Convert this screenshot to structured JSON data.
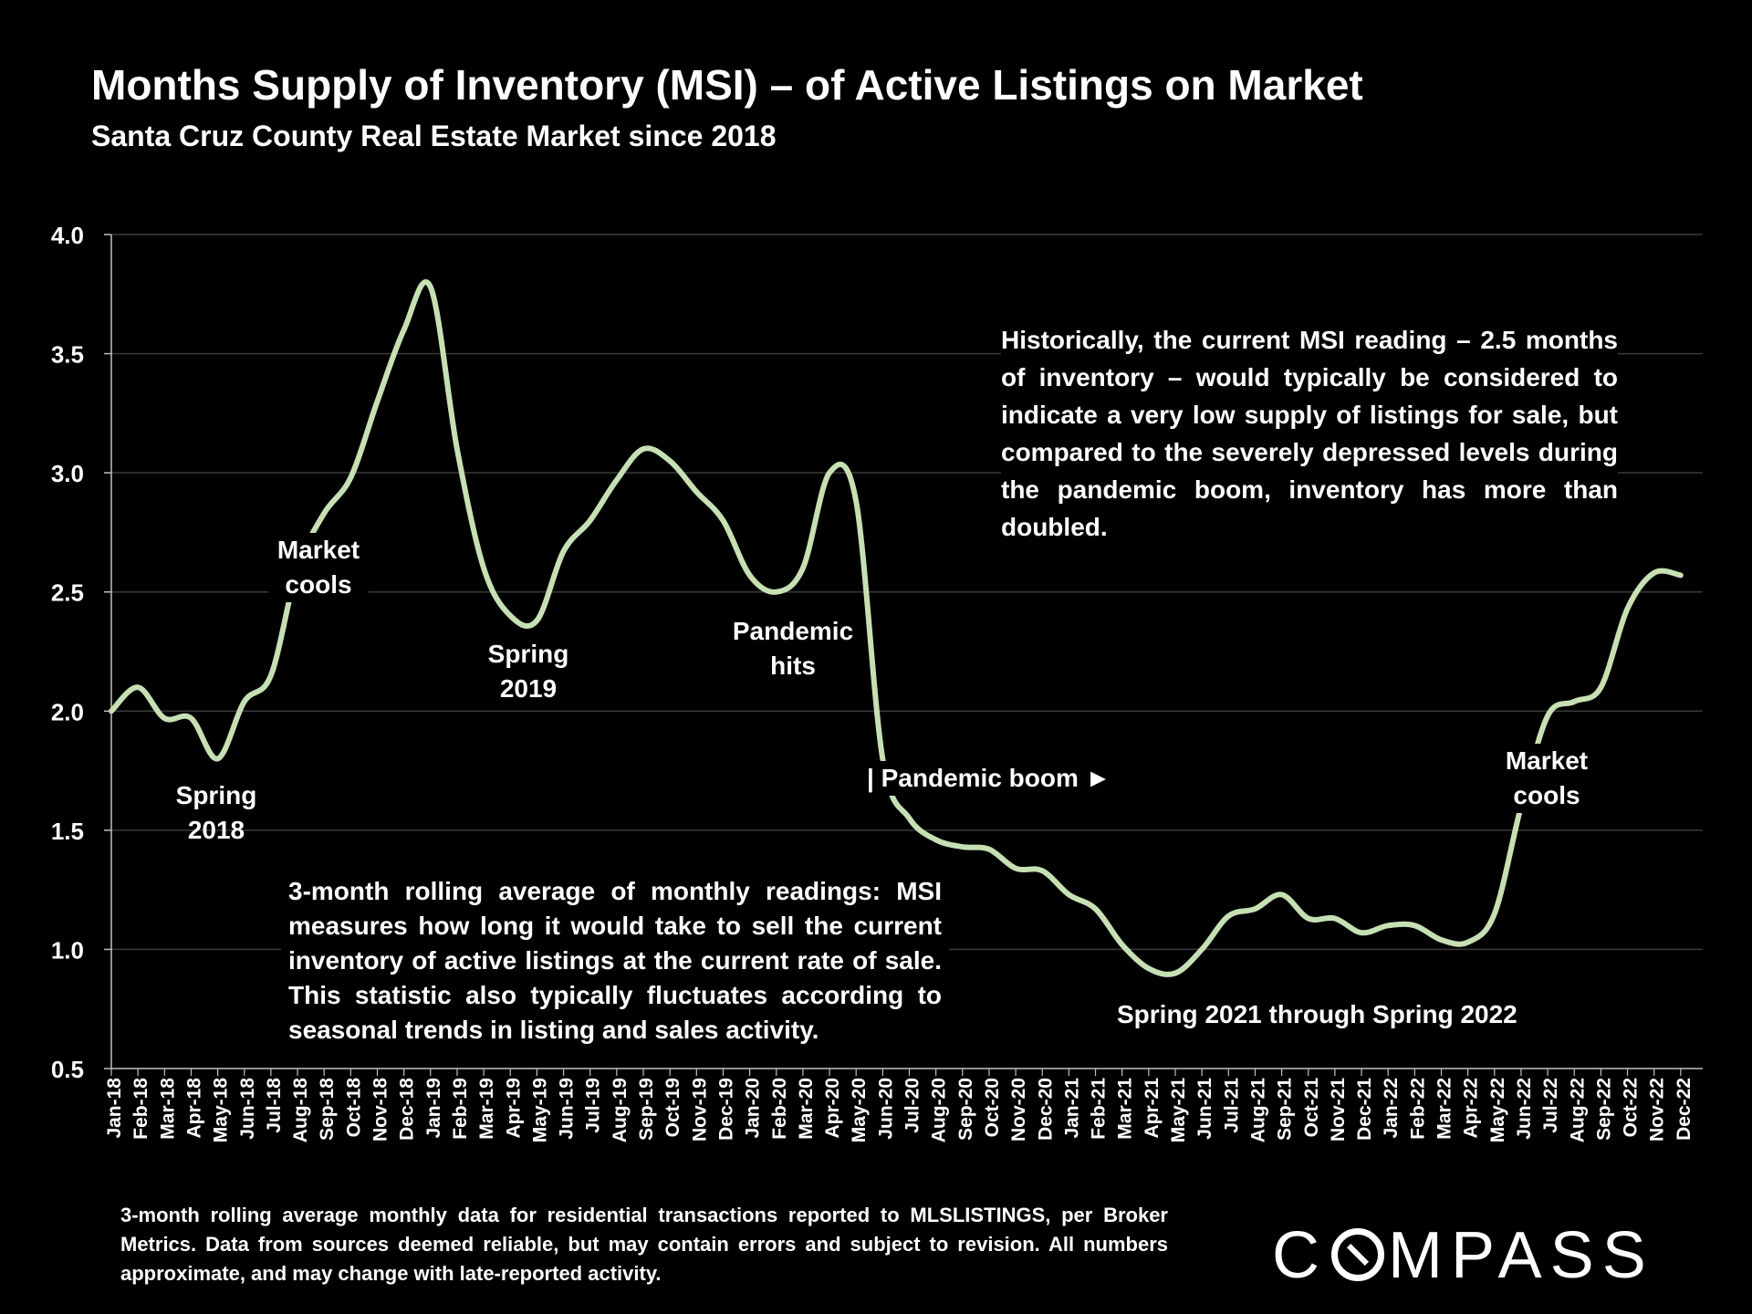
{
  "title": "Months Supply of Inventory (MSI) – of Active Listings on Market",
  "subtitle": "Santa Cruz County Real Estate Market since 2018",
  "chart_data": {
    "type": "line",
    "title": "Months Supply of Inventory (MSI) – of Active Listings on Market",
    "xlabel": "",
    "ylabel": "",
    "ylim": [
      0.5,
      4.0
    ],
    "yticks": [
      "0.5",
      "1.0",
      "1.5",
      "2.0",
      "2.5",
      "3.0",
      "3.5",
      "4.0"
    ],
    "grid": true,
    "categories": [
      "Jan-18",
      "Feb-18",
      "Mar-18",
      "Apr-18",
      "May-18",
      "Jun-18",
      "Jul-18",
      "Aug-18",
      "Sep-18",
      "Oct-18",
      "Nov-18",
      "Dec-18",
      "Jan-19",
      "Feb-19",
      "Mar-19",
      "Apr-19",
      "May-19",
      "Jun-19",
      "Jul-19",
      "Aug-19",
      "Sep-19",
      "Oct-19",
      "Nov-19",
      "Dec-19",
      "Jan-20",
      "Feb-20",
      "Mar-20",
      "Apr-20",
      "May-20",
      "Jun-20",
      "Jul-20",
      "Aug-20",
      "Sep-20",
      "Oct-20",
      "Nov-20",
      "Dec-20",
      "Jan-21",
      "Feb-21",
      "Mar-21",
      "Apr-21",
      "May-21",
      "Jun-21",
      "Jul-21",
      "Aug-21",
      "Sep-21",
      "Oct-21",
      "Nov-21",
      "Dec-21",
      "Jan-22",
      "Feb-22",
      "Mar-22",
      "Apr-22",
      "May-22",
      "Jun-22",
      "Jul-22",
      "Aug-22",
      "Sep-22",
      "Oct-22",
      "Nov-22",
      "Dec-22"
    ],
    "series": [
      {
        "name": "MSI 3-month rolling average",
        "color": "#c6e0b4",
        "values": [
          2.0,
          2.1,
          1.97,
          1.97,
          1.8,
          2.04,
          2.15,
          2.6,
          2.83,
          2.98,
          3.3,
          3.6,
          3.78,
          3.1,
          2.6,
          2.4,
          2.38,
          2.67,
          2.8,
          2.97,
          3.1,
          3.05,
          2.92,
          2.8,
          2.57,
          2.5,
          2.6,
          3.0,
          2.88,
          1.8,
          1.55,
          1.46,
          1.43,
          1.42,
          1.34,
          1.33,
          1.23,
          1.17,
          1.02,
          0.92,
          0.9,
          1.0,
          1.14,
          1.17,
          1.23,
          1.13,
          1.13,
          1.07,
          1.1,
          1.1,
          1.04,
          1.03,
          1.15,
          1.6,
          1.98,
          2.04,
          2.1,
          2.43,
          2.58,
          2.57
        ]
      }
    ],
    "annotations": {
      "spring_2018": [
        "Spring",
        "2018"
      ],
      "market_cools_1": [
        "Market",
        "cools"
      ],
      "spring_2019": [
        "Spring",
        "2019"
      ],
      "pandemic_hits": [
        "Pandemic",
        "hits"
      ],
      "pandemic_boom": "| Pandemic boom ►",
      "spring_2021_2022": "Spring 2021 through Spring 2022",
      "market_cools_2": [
        "Market",
        "cools"
      ],
      "historical_note": "Historically, the current MSI reading – 2.5 months of inventory – would typically be considered to indicate a very low supply of listings for sale, but compared to the severely depressed levels during the pandemic boom, inventory has more than doubled.",
      "method_note": "3-month rolling average of monthly readings: MSI measures how long it would take to sell the current inventory of active listings at the current rate of sale. This statistic also typically fluctuates according to seasonal trends in listing and sales activity."
    }
  },
  "footnote": "3-month rolling average monthly data for residential transactions reported to MLSLISTINGS, per Broker Metrics. Data from sources deemed reliable, but may contain errors and subject to revision. All numbers approximate, and may change with late-reported activity.",
  "logo": {
    "pre": "C",
    "post": "MPASS",
    "icon": "compass-o-icon",
    "color": "#ffffff"
  }
}
